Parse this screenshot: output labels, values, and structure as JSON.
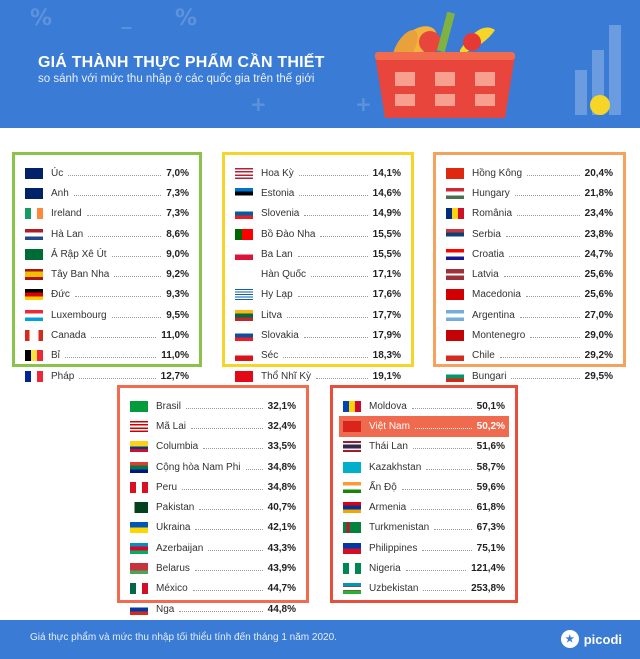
{
  "header": {
    "title": "GIÁ THÀNH THỰC PHẨM CẦN THIẾT",
    "subtitle": "so sánh với mức thu nhập ở các quốc gia trên thế giới"
  },
  "panels": [
    {
      "color": "#8bc34a",
      "rows": [
        {
          "name": "Úc",
          "value": "7,0%",
          "flag": "au"
        },
        {
          "name": "Anh",
          "value": "7,3%",
          "flag": "gb"
        },
        {
          "name": "Ireland",
          "value": "7,3%",
          "flag": "ie"
        },
        {
          "name": "Hà Lan",
          "value": "8,6%",
          "flag": "nl"
        },
        {
          "name": "Ả Rập Xê Út",
          "value": "9,0%",
          "flag": "sa"
        },
        {
          "name": "Tây Ban Nha",
          "value": "9,2%",
          "flag": "es"
        },
        {
          "name": "Đức",
          "value": "9,3%",
          "flag": "de"
        },
        {
          "name": "Luxembourg",
          "value": "9,5%",
          "flag": "lu"
        },
        {
          "name": "Canada",
          "value": "11,0%",
          "flag": "ca"
        },
        {
          "name": "Bỉ",
          "value": "11,0%",
          "flag": "be"
        },
        {
          "name": "Pháp",
          "value": "12,7%",
          "flag": "fr"
        }
      ]
    },
    {
      "color": "#f5d628",
      "rows": [
        {
          "name": "Hoa Kỳ",
          "value": "14,1%",
          "flag": "us"
        },
        {
          "name": "Estonia",
          "value": "14,6%",
          "flag": "ee"
        },
        {
          "name": "Slovenia",
          "value": "14,9%",
          "flag": "si"
        },
        {
          "name": "Bồ Đào Nha",
          "value": "15,5%",
          "flag": "pt"
        },
        {
          "name": "Ba Lan",
          "value": "15,5%",
          "flag": "pl"
        },
        {
          "name": "Hàn Quốc",
          "value": "17,1%",
          "flag": "kr"
        },
        {
          "name": "Hy Lạp",
          "value": "17,6%",
          "flag": "gr"
        },
        {
          "name": "Litva",
          "value": "17,7%",
          "flag": "lt"
        },
        {
          "name": "Slovakia",
          "value": "17,9%",
          "flag": "sk"
        },
        {
          "name": "Séc",
          "value": "18,3%",
          "flag": "cz"
        },
        {
          "name": "Thổ Nhĩ Kỳ",
          "value": "19,1%",
          "flag": "tr"
        }
      ]
    },
    {
      "color": "#f5a25d",
      "rows": [
        {
          "name": "Hồng Kông",
          "value": "20,4%",
          "flag": "hk"
        },
        {
          "name": "Hungary",
          "value": "21,8%",
          "flag": "hu"
        },
        {
          "name": "România",
          "value": "23,4%",
          "flag": "ro"
        },
        {
          "name": "Serbia",
          "value": "23,8%",
          "flag": "rs"
        },
        {
          "name": "Croatia",
          "value": "24,7%",
          "flag": "hr"
        },
        {
          "name": "Latvia",
          "value": "25,6%",
          "flag": "lv"
        },
        {
          "name": "Macedonia",
          "value": "25,6%",
          "flag": "mk"
        },
        {
          "name": "Argentina",
          "value": "27,0%",
          "flag": "ar"
        },
        {
          "name": "Montenegro",
          "value": "29,0%",
          "flag": "me"
        },
        {
          "name": "Chile",
          "value": "29,2%",
          "flag": "cl"
        },
        {
          "name": "Bungari",
          "value": "29,5%",
          "flag": "bg"
        }
      ]
    },
    {
      "color": "#f26b4f",
      "rows": [
        {
          "name": "Brasil",
          "value": "32,1%",
          "flag": "br"
        },
        {
          "name": "Mã Lai",
          "value": "32,4%",
          "flag": "my"
        },
        {
          "name": "Columbia",
          "value": "33,5%",
          "flag": "co"
        },
        {
          "name": "Cộng hòa Nam Phi",
          "value": "34,8%",
          "flag": "za"
        },
        {
          "name": "Peru",
          "value": "34,8%",
          "flag": "pe"
        },
        {
          "name": "Pakistan",
          "value": "40,7%",
          "flag": "pk"
        },
        {
          "name": "Ukraina",
          "value": "42,1%",
          "flag": "ua"
        },
        {
          "name": "Azerbaijan",
          "value": "43,3%",
          "flag": "az"
        },
        {
          "name": "Belarus",
          "value": "43,9%",
          "flag": "by"
        },
        {
          "name": "México",
          "value": "44,7%",
          "flag": "mx"
        },
        {
          "name": "Nga",
          "value": "44,8%",
          "flag": "ru"
        }
      ]
    },
    {
      "color": "#e84e3c",
      "rows": [
        {
          "name": "Moldova",
          "value": "50,1%",
          "flag": "md"
        },
        {
          "name": "Việt Nam",
          "value": "50,2%",
          "flag": "vn",
          "highlight": true
        },
        {
          "name": "Thái Lan",
          "value": "51,6%",
          "flag": "th"
        },
        {
          "name": "Kazakhstan",
          "value": "58,7%",
          "flag": "kz"
        },
        {
          "name": "Ấn Độ",
          "value": "59,6%",
          "flag": "in"
        },
        {
          "name": "Armenia",
          "value": "61,8%",
          "flag": "am"
        },
        {
          "name": "Turkmenistan",
          "value": "67,3%",
          "flag": "tm"
        },
        {
          "name": "Philippines",
          "value": "75,1%",
          "flag": "ph"
        },
        {
          "name": "Nigeria",
          "value": "121,4%",
          "flag": "ng"
        },
        {
          "name": "Uzbekistan",
          "value": "253,8%",
          "flag": "uz"
        }
      ]
    }
  ],
  "footer": {
    "note": "Giá thực phẩm và mức thu nhập tối thiểu tính đến tháng 1 năm 2020.",
    "brand": "picodi"
  }
}
